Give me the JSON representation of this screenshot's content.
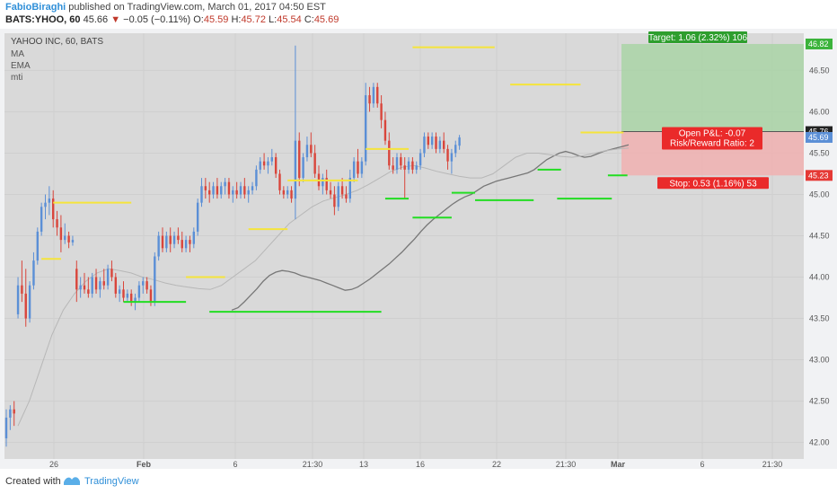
{
  "header": {
    "author": "FabioBiraghi",
    "published_text": "published on TradingView.com, March 01, 2017 04:50 EST",
    "symbol": "BATS:YHOO, 60",
    "last": "45.66",
    "change_arrow": "▼",
    "change": "−0.05 (−0.11%)",
    "o_label": "O:",
    "o_val": "45.59",
    "h_label": "H:",
    "h_val": "45.72",
    "l_label": "L:",
    "l_val": "45.54",
    "c_label": "C:",
    "c_val": "45.69"
  },
  "legend": {
    "title": "YAHOO INC, 60, BATS",
    "items": [
      "MA",
      "EMA",
      "mti"
    ]
  },
  "footer": {
    "created_with": "Created with",
    "brand": "TradingView"
  },
  "colors": {
    "up": "#5b8fd6",
    "down": "#d9453b",
    "resistance": "#f5e43b",
    "support": "#22dd22",
    "target_zone": "#a9d3a6",
    "stop_zone": "#f0b0b0",
    "ma_line": "#777777",
    "ema_line": "#b7b7b7"
  },
  "chart_data": {
    "type": "candlestick",
    "symbol": "YAHOO INC",
    "interval": "60",
    "ylim": [
      41.8,
      46.95
    ],
    "yticks": [
      42.0,
      42.5,
      43.0,
      43.5,
      44.0,
      44.5,
      45.0,
      45.5,
      46.0,
      46.5
    ],
    "xticks": [
      "26",
      "Feb",
      "6",
      "21:30",
      "13",
      "16",
      "22",
      "21:30",
      "Mar",
      "6",
      "21:30"
    ],
    "price_labels": [
      {
        "value": 46.82,
        "text": "46.82",
        "color": "#3bb33b"
      },
      {
        "value": 45.76,
        "text": "45.76",
        "color": "#222222"
      },
      {
        "value": 45.69,
        "text": "45.69",
        "color": "#5b8fd6"
      },
      {
        "value": 45.23,
        "text": "45.23",
        "color": "#e53935"
      }
    ],
    "candles": [
      {
        "o": 42.05,
        "h": 42.4,
        "l": 41.95,
        "c": 42.3
      },
      {
        "o": 42.3,
        "h": 42.45,
        "l": 42.15,
        "c": 42.4
      },
      {
        "o": 42.4,
        "h": 42.5,
        "l": 42.2,
        "c": 42.35
      },
      {
        "o": 43.55,
        "h": 44.0,
        "l": 43.5,
        "c": 43.9
      },
      {
        "o": 43.9,
        "h": 44.2,
        "l": 43.7,
        "c": 43.8
      },
      {
        "o": 43.8,
        "h": 44.1,
        "l": 43.4,
        "c": 43.5
      },
      {
        "o": 43.5,
        "h": 43.95,
        "l": 43.45,
        "c": 43.9
      },
      {
        "o": 43.9,
        "h": 44.3,
        "l": 43.85,
        "c": 44.2
      },
      {
        "o": 44.2,
        "h": 44.6,
        "l": 44.15,
        "c": 44.55
      },
      {
        "o": 44.55,
        "h": 44.9,
        "l": 44.5,
        "c": 44.85
      },
      {
        "o": 44.85,
        "h": 45.0,
        "l": 44.7,
        "c": 44.9
      },
      {
        "o": 44.9,
        "h": 45.1,
        "l": 44.75,
        "c": 44.95
      },
      {
        "o": 44.95,
        "h": 45.05,
        "l": 44.6,
        "c": 44.7
      },
      {
        "o": 44.7,
        "h": 44.8,
        "l": 44.5,
        "c": 44.6
      },
      {
        "o": 44.6,
        "h": 44.75,
        "l": 44.3,
        "c": 44.45
      },
      {
        "o": 44.45,
        "h": 44.65,
        "l": 44.4,
        "c": 44.5
      },
      {
        "o": 44.5,
        "h": 44.55,
        "l": 44.35,
        "c": 44.42
      },
      {
        "o": 44.42,
        "h": 44.5,
        "l": 44.38,
        "c": 44.45
      },
      {
        "o": 44.1,
        "h": 44.2,
        "l": 43.7,
        "c": 43.85
      },
      {
        "o": 43.85,
        "h": 44.0,
        "l": 43.75,
        "c": 43.9
      },
      {
        "o": 43.9,
        "h": 44.05,
        "l": 43.8,
        "c": 43.85
      },
      {
        "o": 43.85,
        "h": 44.0,
        "l": 43.75,
        "c": 43.8
      },
      {
        "o": 43.8,
        "h": 44.05,
        "l": 43.75,
        "c": 44.0
      },
      {
        "o": 44.0,
        "h": 44.1,
        "l": 43.8,
        "c": 43.85
      },
      {
        "o": 43.85,
        "h": 44.0,
        "l": 43.75,
        "c": 43.95
      },
      {
        "o": 43.95,
        "h": 44.1,
        "l": 43.85,
        "c": 43.9
      },
      {
        "o": 43.9,
        "h": 44.15,
        "l": 43.85,
        "c": 44.1
      },
      {
        "o": 44.1,
        "h": 44.2,
        "l": 43.95,
        "c": 44.0
      },
      {
        "o": 44.0,
        "h": 44.05,
        "l": 43.75,
        "c": 43.8
      },
      {
        "o": 43.8,
        "h": 43.9,
        "l": 43.7,
        "c": 43.85
      },
      {
        "o": 43.85,
        "h": 43.95,
        "l": 43.7,
        "c": 43.75
      },
      {
        "o": 43.75,
        "h": 43.85,
        "l": 43.7,
        "c": 43.8
      },
      {
        "o": 43.8,
        "h": 43.85,
        "l": 43.65,
        "c": 43.7
      },
      {
        "o": 43.7,
        "h": 43.8,
        "l": 43.6,
        "c": 43.75
      },
      {
        "o": 43.75,
        "h": 43.95,
        "l": 43.7,
        "c": 43.9
      },
      {
        "o": 43.9,
        "h": 44.0,
        "l": 43.8,
        "c": 43.95
      },
      {
        "o": 43.95,
        "h": 44.0,
        "l": 43.8,
        "c": 43.85
      },
      {
        "o": 43.85,
        "h": 43.9,
        "l": 43.65,
        "c": 43.7
      },
      {
        "o": 43.7,
        "h": 44.3,
        "l": 43.65,
        "c": 44.25
      },
      {
        "o": 44.25,
        "h": 44.55,
        "l": 44.2,
        "c": 44.5
      },
      {
        "o": 44.5,
        "h": 44.6,
        "l": 44.3,
        "c": 44.35
      },
      {
        "o": 44.35,
        "h": 44.55,
        "l": 44.3,
        "c": 44.5
      },
      {
        "o": 44.5,
        "h": 44.6,
        "l": 44.3,
        "c": 44.4
      },
      {
        "o": 44.4,
        "h": 44.55,
        "l": 44.35,
        "c": 44.5
      },
      {
        "o": 44.5,
        "h": 44.6,
        "l": 44.4,
        "c": 44.45
      },
      {
        "o": 44.45,
        "h": 44.55,
        "l": 44.3,
        "c": 44.35
      },
      {
        "o": 44.35,
        "h": 44.5,
        "l": 44.3,
        "c": 44.45
      },
      {
        "o": 44.45,
        "h": 44.5,
        "l": 44.3,
        "c": 44.4
      },
      {
        "o": 44.4,
        "h": 44.6,
        "l": 44.35,
        "c": 44.55
      },
      {
        "o": 44.55,
        "h": 44.95,
        "l": 44.5,
        "c": 44.9
      },
      {
        "o": 44.9,
        "h": 45.2,
        "l": 44.85,
        "c": 45.1
      },
      {
        "o": 45.1,
        "h": 45.2,
        "l": 44.95,
        "c": 45.05
      },
      {
        "o": 45.05,
        "h": 45.15,
        "l": 44.9,
        "c": 45.0
      },
      {
        "o": 45.0,
        "h": 45.15,
        "l": 44.95,
        "c": 45.1
      },
      {
        "o": 45.1,
        "h": 45.2,
        "l": 44.95,
        "c": 45.0
      },
      {
        "o": 45.0,
        "h": 45.15,
        "l": 44.95,
        "c": 45.1
      },
      {
        "o": 45.1,
        "h": 45.2,
        "l": 45.0,
        "c": 45.15
      },
      {
        "o": 45.15,
        "h": 45.2,
        "l": 44.95,
        "c": 45.0
      },
      {
        "o": 45.0,
        "h": 45.1,
        "l": 44.9,
        "c": 45.05
      },
      {
        "o": 45.05,
        "h": 45.15,
        "l": 44.95,
        "c": 45.0
      },
      {
        "o": 45.0,
        "h": 45.15,
        "l": 44.95,
        "c": 45.1
      },
      {
        "o": 45.1,
        "h": 45.2,
        "l": 44.95,
        "c": 45.0
      },
      {
        "o": 45.0,
        "h": 45.1,
        "l": 44.9,
        "c": 45.05
      },
      {
        "o": 45.05,
        "h": 45.15,
        "l": 45.0,
        "c": 45.1
      },
      {
        "o": 45.1,
        "h": 45.35,
        "l": 45.05,
        "c": 45.3
      },
      {
        "o": 45.3,
        "h": 45.45,
        "l": 45.25,
        "c": 45.4
      },
      {
        "o": 45.4,
        "h": 45.5,
        "l": 45.3,
        "c": 45.35
      },
      {
        "o": 45.35,
        "h": 45.45,
        "l": 45.25,
        "c": 45.4
      },
      {
        "o": 45.4,
        "h": 45.55,
        "l": 45.35,
        "c": 45.45
      },
      {
        "o": 45.45,
        "h": 45.5,
        "l": 45.2,
        "c": 45.25
      },
      {
        "o": 45.25,
        "h": 45.3,
        "l": 45.0,
        "c": 45.05
      },
      {
        "o": 45.05,
        "h": 45.1,
        "l": 44.95,
        "c": 45.0
      },
      {
        "o": 45.0,
        "h": 45.1,
        "l": 44.95,
        "c": 45.05
      },
      {
        "o": 45.05,
        "h": 45.1,
        "l": 44.9,
        "c": 44.95
      },
      {
        "o": 44.95,
        "h": 46.8,
        "l": 44.7,
        "c": 45.65
      },
      {
        "o": 45.65,
        "h": 45.75,
        "l": 45.1,
        "c": 45.2
      },
      {
        "o": 45.2,
        "h": 45.5,
        "l": 45.15,
        "c": 45.45
      },
      {
        "o": 45.45,
        "h": 45.7,
        "l": 45.4,
        "c": 45.6
      },
      {
        "o": 45.6,
        "h": 45.75,
        "l": 45.45,
        "c": 45.5
      },
      {
        "o": 45.5,
        "h": 45.6,
        "l": 45.2,
        "c": 45.25
      },
      {
        "o": 45.25,
        "h": 45.35,
        "l": 45.05,
        "c": 45.1
      },
      {
        "o": 45.1,
        "h": 45.25,
        "l": 45.0,
        "c": 45.2
      },
      {
        "o": 45.2,
        "h": 45.3,
        "l": 45.0,
        "c": 45.05
      },
      {
        "o": 45.05,
        "h": 45.15,
        "l": 44.95,
        "c": 45.0
      },
      {
        "o": 45.0,
        "h": 45.1,
        "l": 44.75,
        "c": 44.85
      },
      {
        "o": 44.85,
        "h": 45.15,
        "l": 44.8,
        "c": 45.1
      },
      {
        "o": 45.1,
        "h": 45.2,
        "l": 44.95,
        "c": 45.0
      },
      {
        "o": 45.0,
        "h": 45.1,
        "l": 44.9,
        "c": 44.95
      },
      {
        "o": 44.95,
        "h": 45.3,
        "l": 44.9,
        "c": 45.2
      },
      {
        "o": 45.2,
        "h": 45.45,
        "l": 45.15,
        "c": 45.4
      },
      {
        "o": 45.4,
        "h": 45.55,
        "l": 45.2,
        "c": 45.25
      },
      {
        "o": 45.25,
        "h": 45.45,
        "l": 45.2,
        "c": 45.4
      },
      {
        "o": 45.4,
        "h": 46.35,
        "l": 45.35,
        "c": 46.2
      },
      {
        "o": 46.2,
        "h": 46.3,
        "l": 46.0,
        "c": 46.1
      },
      {
        "o": 46.1,
        "h": 46.35,
        "l": 46.05,
        "c": 46.3
      },
      {
        "o": 46.3,
        "h": 46.35,
        "l": 46.05,
        "c": 46.1
      },
      {
        "o": 46.1,
        "h": 46.2,
        "l": 45.8,
        "c": 45.9
      },
      {
        "o": 45.9,
        "h": 46.0,
        "l": 45.6,
        "c": 45.65
      },
      {
        "o": 45.65,
        "h": 45.75,
        "l": 45.3,
        "c": 45.35
      },
      {
        "o": 45.35,
        "h": 45.45,
        "l": 45.25,
        "c": 45.3
      },
      {
        "o": 45.3,
        "h": 45.5,
        "l": 45.25,
        "c": 45.45
      },
      {
        "o": 45.45,
        "h": 45.5,
        "l": 45.3,
        "c": 45.35
      },
      {
        "o": 45.35,
        "h": 45.45,
        "l": 44.95,
        "c": 45.3
      },
      {
        "o": 45.3,
        "h": 45.45,
        "l": 45.25,
        "c": 45.4
      },
      {
        "o": 45.4,
        "h": 45.45,
        "l": 45.25,
        "c": 45.3
      },
      {
        "o": 45.3,
        "h": 45.4,
        "l": 45.25,
        "c": 45.35
      },
      {
        "o": 45.35,
        "h": 45.55,
        "l": 45.3,
        "c": 45.5
      },
      {
        "o": 45.5,
        "h": 45.75,
        "l": 45.45,
        "c": 45.7
      },
      {
        "o": 45.7,
        "h": 45.75,
        "l": 45.55,
        "c": 45.6
      },
      {
        "o": 45.6,
        "h": 45.75,
        "l": 45.55,
        "c": 45.7
      },
      {
        "o": 45.7,
        "h": 45.75,
        "l": 45.5,
        "c": 45.55
      },
      {
        "o": 45.55,
        "h": 45.7,
        "l": 45.5,
        "c": 45.65
      },
      {
        "o": 45.65,
        "h": 45.75,
        "l": 45.5,
        "c": 45.55
      },
      {
        "o": 45.55,
        "h": 45.6,
        "l": 45.3,
        "c": 45.4
      },
      {
        "o": 45.4,
        "h": 45.55,
        "l": 45.25,
        "c": 45.5
      },
      {
        "o": 45.5,
        "h": 45.65,
        "l": 45.45,
        "c": 45.6
      },
      {
        "o": 45.59,
        "h": 45.72,
        "l": 45.54,
        "c": 45.69
      }
    ],
    "ma": [
      43.6,
      43.63,
      43.7,
      43.78,
      43.86,
      43.95,
      44.02,
      44.06,
      44.08,
      44.07,
      44.05,
      44.02,
      44.0,
      43.98,
      43.96,
      43.93,
      43.9,
      43.87,
      43.84,
      43.85,
      43.88,
      43.93,
      43.98,
      44.04,
      44.1,
      44.16,
      44.23,
      44.3,
      44.38,
      44.46,
      44.55,
      44.63,
      44.7,
      44.76,
      44.82,
      44.88,
      44.93,
      44.97,
      45.0,
      45.05,
      45.1,
      45.13,
      45.16,
      45.18,
      45.2,
      45.22,
      45.24,
      45.26,
      45.3,
      45.36,
      45.42,
      45.46,
      45.5,
      45.52,
      45.5,
      45.47,
      45.45,
      45.46,
      45.49,
      45.52,
      45.54,
      45.56,
      45.58,
      45.6
    ],
    "ema": [
      42.2,
      42.5,
      42.9,
      43.3,
      43.6,
      43.8,
      43.95,
      44.05,
      44.1,
      44.08,
      44.05,
      44.0,
      43.97,
      43.93,
      43.9,
      43.88,
      43.86,
      43.85,
      43.9,
      44.0,
      44.1,
      44.2,
      44.35,
      44.5,
      44.65,
      44.75,
      44.85,
      44.92,
      44.96,
      45.0,
      45.05,
      45.12,
      45.2,
      45.28,
      45.33,
      45.35,
      45.32,
      45.28,
      45.25,
      45.22,
      45.2,
      45.2,
      45.25,
      45.35,
      45.45,
      45.5,
      45.5,
      45.48,
      45.46,
      45.45,
      45.47,
      45.5,
      45.53,
      45.55,
      45.56
    ],
    "levels": [
      {
        "kind": "resistance",
        "price": 44.22,
        "from": 9,
        "to": 14
      },
      {
        "kind": "resistance",
        "price": 44.9,
        "from": 12,
        "to": 32
      },
      {
        "kind": "support",
        "price": 43.7,
        "from": 30,
        "to": 46
      },
      {
        "kind": "resistance",
        "price": 44.0,
        "from": 46,
        "to": 56
      },
      {
        "kind": "support",
        "price": 43.58,
        "from": 52,
        "to": 96
      },
      {
        "kind": "resistance",
        "price": 44.58,
        "from": 62,
        "to": 72
      },
      {
        "kind": "resistance",
        "price": 45.17,
        "from": 72,
        "to": 90
      },
      {
        "kind": "resistance",
        "price": 45.55,
        "from": 92,
        "to": 103
      },
      {
        "kind": "support",
        "price": 44.95,
        "from": 97,
        "to": 103
      },
      {
        "kind": "resistance",
        "price": 46.78,
        "from": 104,
        "to": 125
      },
      {
        "kind": "support",
        "price": 44.72,
        "from": 104,
        "to": 114
      },
      {
        "kind": "support",
        "price": 45.02,
        "from": 114,
        "to": 120
      },
      {
        "kind": "support",
        "price": 44.93,
        "from": 120,
        "to": 135
      },
      {
        "kind": "resistance",
        "price": 46.33,
        "from": 129,
        "to": 147
      },
      {
        "kind": "support",
        "price": 45.3,
        "from": 136,
        "to": 142
      },
      {
        "kind": "support",
        "price": 44.95,
        "from": 141,
        "to": 155
      },
      {
        "kind": "resistance",
        "price": 45.75,
        "from": 147,
        "to": 158
      },
      {
        "kind": "support",
        "price": 45.23,
        "from": 154,
        "to": 159
      }
    ],
    "position": {
      "entry": 45.76,
      "target": 46.82,
      "stop": 45.23,
      "target_label": "Target: 1.06 (2.32%) 106",
      "stop_label": "Stop: 0.53 (1.16%) 53",
      "pnl_label": "Open P&L: -0.07",
      "rr_label": "Risk/Reward Ratio: 2"
    }
  }
}
